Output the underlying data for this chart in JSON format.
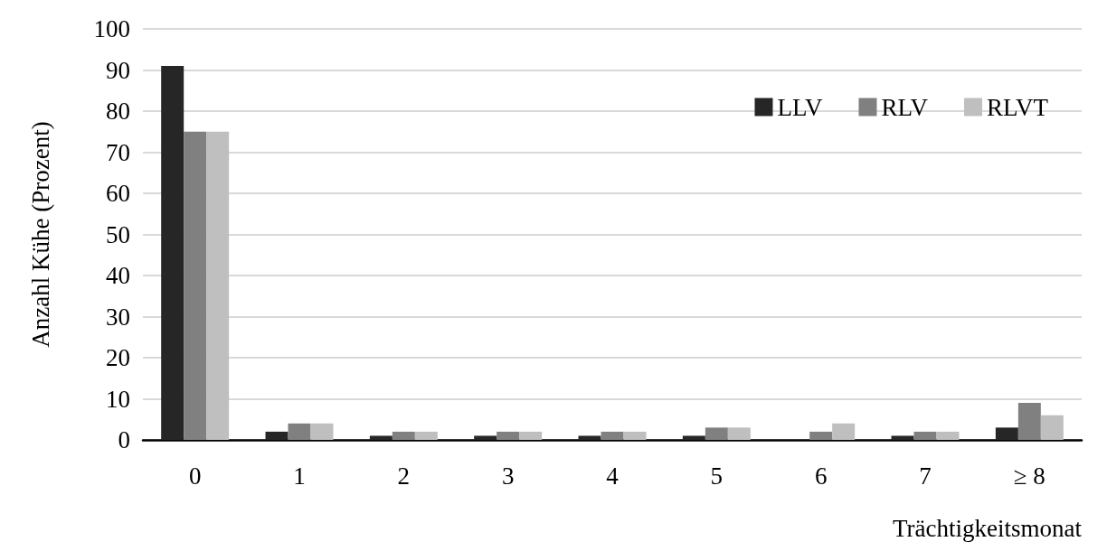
{
  "chart_data": {
    "type": "bar",
    "xlabel": "Trächtigkeitsmonat",
    "ylabel": "Anzahl Kühe (Prozent)",
    "categories": [
      "0",
      "1",
      "2",
      "3",
      "4",
      "5",
      "6",
      "7",
      "≥ 8"
    ],
    "series": [
      {
        "name": "LLV",
        "color": "#262626",
        "values": [
          91,
          2,
          1,
          1,
          1,
          1,
          0,
          1,
          3
        ]
      },
      {
        "name": "RLV",
        "color": "#808080",
        "values": [
          75,
          4,
          2,
          2,
          2,
          3,
          2,
          2,
          9
        ]
      },
      {
        "name": "RLVT",
        "color": "#bfbfbf",
        "values": [
          75,
          4,
          2,
          2,
          2,
          3,
          4,
          2,
          6
        ]
      }
    ],
    "ylim": [
      0,
      100
    ],
    "yticks": [
      0,
      10,
      20,
      30,
      40,
      50,
      60,
      70,
      80,
      90,
      100
    ],
    "grid": "y",
    "legend": "top right"
  }
}
